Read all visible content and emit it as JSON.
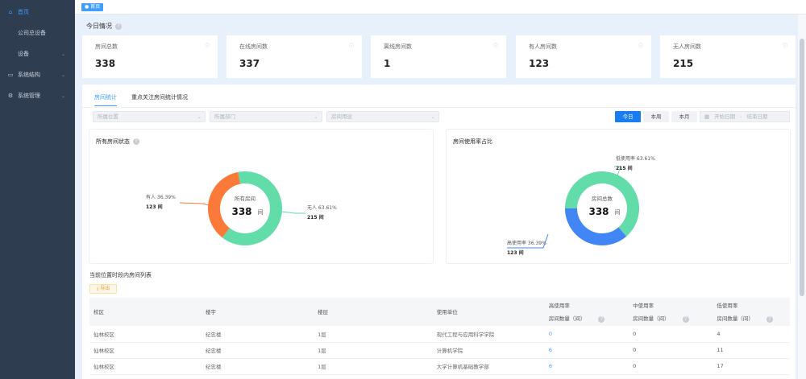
{
  "sidebar": {
    "items": [
      {
        "label": "首页",
        "icon": "home-icon"
      },
      {
        "label": "公司总设备"
      },
      {
        "label": "设备"
      },
      {
        "label": "系统结构",
        "icon": "monitor-icon"
      },
      {
        "label": "系统管理",
        "icon": "gear-icon"
      }
    ]
  },
  "topbar": {
    "tag": "首页"
  },
  "overview": {
    "title": "今日情况",
    "cards": [
      {
        "label": "房间总数",
        "value": "338"
      },
      {
        "label": "在线房间数",
        "value": "337"
      },
      {
        "label": "离线房间数",
        "value": "1"
      },
      {
        "label": "有人房间数",
        "value": "123"
      },
      {
        "label": "无人房间数",
        "value": "215"
      }
    ]
  },
  "tabs": [
    {
      "label": "房间统计"
    },
    {
      "label": "重点关注房间统计情况"
    }
  ],
  "filters": {
    "location": "所属位置",
    "department": "所属部门",
    "usage": "房间用途"
  },
  "period": {
    "today": "今日",
    "week": "本周",
    "month": "本月",
    "start": "开始日期",
    "sep": "-",
    "end": "结束日期"
  },
  "colors": {
    "accent": "#409eff",
    "green": "#62dca9",
    "orange": "#fb7a3a",
    "blue": "#4285f4"
  },
  "chart_data": [
    {
      "type": "pie",
      "title": "所有房间状态",
      "center_label": "所有房间",
      "center_value": "338",
      "center_unit": "间",
      "slices": [
        {
          "name": "有人",
          "percent": "36.39%",
          "value": 123,
          "value_label": "123 间",
          "color": "#fb7a3a"
        },
        {
          "name": "无人",
          "percent": "63.61%",
          "value": 215,
          "value_label": "215 间",
          "color": "#62dca9"
        }
      ]
    },
    {
      "type": "pie",
      "title": "房间使用率占比",
      "center_label": "房间总数",
      "center_value": "338",
      "center_unit": "间",
      "slices": [
        {
          "name": "低使用率",
          "percent": "63.61%",
          "value": 215,
          "value_label": "215 间",
          "color": "#62dca9"
        },
        {
          "name": "高使用率",
          "percent": "36.39%",
          "value": 123,
          "value_label": "123 间",
          "color": "#4285f4"
        }
      ]
    }
  ],
  "table": {
    "title": "当前位置时段内房间列表",
    "export": "导出",
    "columns": [
      "校区",
      "楼宇",
      "楼层",
      "使用单位",
      [
        "高使用率",
        "房间数量（间）"
      ],
      [
        "中使用率",
        "房间数量（间）"
      ],
      [
        "低使用率",
        "房间数量（间）"
      ]
    ],
    "rows": [
      [
        "仙林校区",
        "纪忠楼",
        "1层",
        "现代工程与应用科学学院",
        "0",
        "0",
        "4"
      ],
      [
        "仙林校区",
        "纪忠楼",
        "1层",
        "计算机学院",
        "6",
        "0",
        "11"
      ],
      [
        "仙林校区",
        "纪忠楼",
        "1层",
        "大学计算机基础教学部",
        "6",
        "0",
        "17"
      ]
    ]
  }
}
